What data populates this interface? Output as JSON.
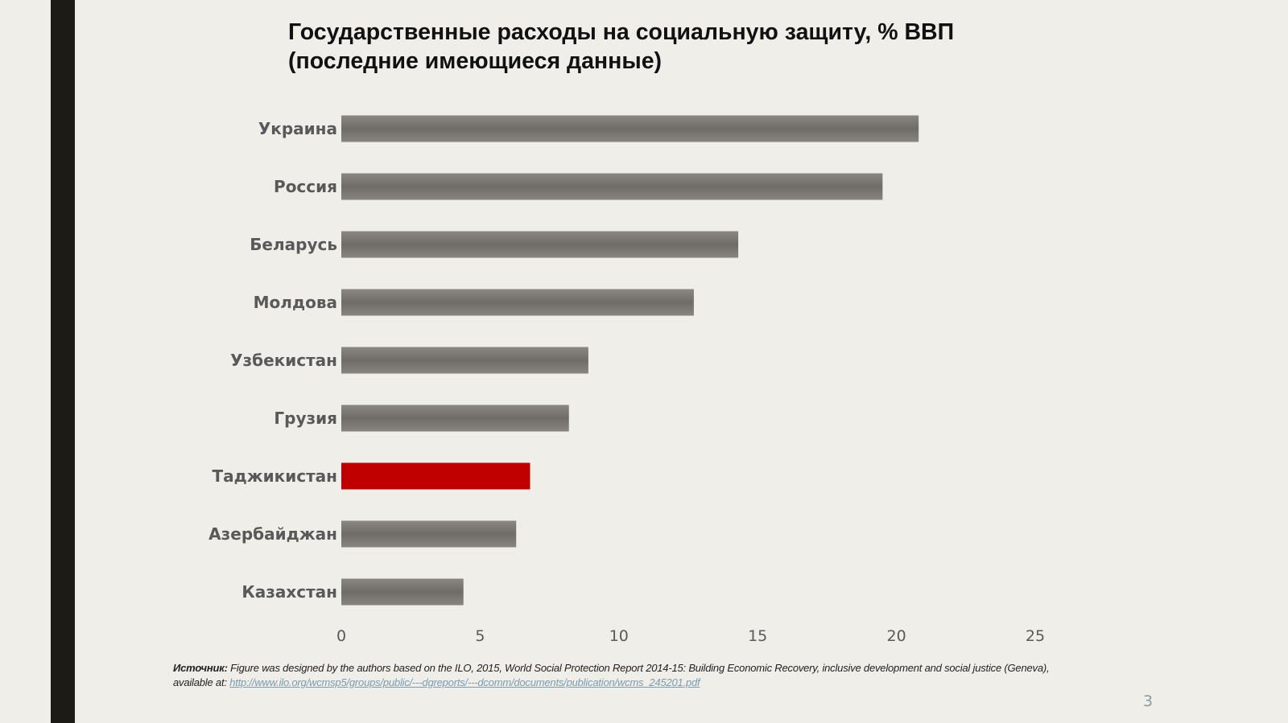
{
  "slide": {
    "title_line1": "Государственные расходы на социальную защиту, % ВВП",
    "title_line2": "(последние имеющиеся данные)",
    "page_number": "3"
  },
  "source": {
    "label": "Источник:",
    "text_line1": " Figure was designed by the authors based on the ILO, 2015, World Social Protection Report 2014-15: Building Economic Recovery, inclusive development and social justice (Geneva),",
    "text_line2": "available at: ",
    "link": "http://www.ilo.org/wcmsp5/groups/public/---dgreports/---dcomm/documents/publication/wcms_245201.pdf"
  },
  "colors": {
    "bar_default": "#777470",
    "bar_highlight": "#c00000",
    "background": "#f0eee9",
    "left_bar": "#1d1b16"
  },
  "chart_data": {
    "type": "bar",
    "orientation": "horizontal",
    "title": "Государственные расходы на социальную защиту, % ВВП (последние имеющиеся данные)",
    "categories": [
      "Украина",
      "Россия",
      "Беларусь",
      "Молдова",
      "Узбекистан",
      "Грузия",
      "Таджикистан",
      "Азербайджан",
      "Казахстан"
    ],
    "values": [
      20.8,
      19.5,
      14.3,
      12.7,
      8.9,
      8.2,
      6.8,
      6.3,
      4.4
    ],
    "highlight": [
      "Таджикистан"
    ],
    "xlim": [
      0,
      25
    ],
    "xticks": [
      0,
      5,
      10,
      15,
      20,
      25
    ],
    "grid": false,
    "xlabel": "",
    "ylabel": ""
  }
}
